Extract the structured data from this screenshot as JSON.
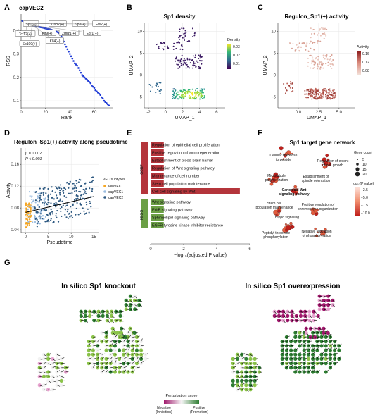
{
  "panels": {
    "a": {
      "letter": "A",
      "title": "capVEC2"
    },
    "b": {
      "letter": "B",
      "title": "Sp1 density"
    },
    "c": {
      "letter": "C",
      "title": "Regulon_Sp1(+) activity"
    },
    "d": {
      "letter": "D",
      "title": "Regulon_Sp1(+) activity along pseudotime"
    },
    "e": {
      "letter": "E"
    },
    "f": {
      "letter": "F",
      "title": "Sp1 target gene network"
    },
    "g": {
      "letter": "G",
      "title_left": "In silico Sp1 knockout",
      "title_right": "In silico Sp1 overexpression"
    }
  },
  "chart_data": [
    {
      "id": "A",
      "type": "scatter",
      "title": "capVEC2",
      "xlabel": "Rank",
      "ylabel": "RSS",
      "xlim": [
        0,
        75
      ],
      "ylim": [
        0.07,
        0.47
      ],
      "xticks": [
        0,
        20,
        40,
        60
      ],
      "yticks": [
        0.1,
        0.2,
        0.3,
        0.4
      ],
      "points": [
        [
          1,
          0.441
        ],
        [
          2,
          0.433
        ],
        [
          3,
          0.431
        ],
        [
          4,
          0.429
        ],
        [
          5,
          0.427
        ],
        [
          6,
          0.426
        ],
        [
          7,
          0.424
        ],
        [
          8,
          0.423
        ],
        [
          9,
          0.421
        ],
        [
          10,
          0.42
        ],
        [
          11,
          0.419
        ],
        [
          12,
          0.418
        ],
        [
          13,
          0.417
        ],
        [
          14,
          0.416
        ],
        [
          15,
          0.415
        ],
        [
          16,
          0.414
        ],
        [
          17,
          0.413
        ],
        [
          18,
          0.412
        ],
        [
          19,
          0.41
        ],
        [
          20,
          0.409
        ],
        [
          21,
          0.408
        ],
        [
          22,
          0.407
        ],
        [
          23,
          0.406
        ],
        [
          24,
          0.405
        ],
        [
          25,
          0.403
        ],
        [
          26,
          0.401
        ],
        [
          27,
          0.399
        ],
        [
          28,
          0.397
        ],
        [
          29,
          0.395
        ],
        [
          30,
          0.393
        ],
        [
          31,
          0.39
        ],
        [
          32,
          0.385
        ],
        [
          33,
          0.375
        ],
        [
          34,
          0.364
        ],
        [
          35,
          0.353
        ],
        [
          36,
          0.341
        ],
        [
          37,
          0.331
        ],
        [
          38,
          0.32
        ],
        [
          39,
          0.31
        ],
        [
          40,
          0.3
        ],
        [
          41,
          0.29
        ],
        [
          42,
          0.28
        ],
        [
          43,
          0.27
        ],
        [
          44,
          0.26
        ],
        [
          45,
          0.255
        ],
        [
          46,
          0.25
        ],
        [
          47,
          0.24
        ],
        [
          48,
          0.23
        ],
        [
          49,
          0.22
        ],
        [
          50,
          0.21
        ],
        [
          51,
          0.205
        ],
        [
          52,
          0.2
        ],
        [
          53,
          0.195
        ],
        [
          54,
          0.19
        ],
        [
          55,
          0.185
        ],
        [
          56,
          0.18
        ],
        [
          57,
          0.175
        ],
        [
          58,
          0.165
        ],
        [
          59,
          0.16
        ],
        [
          60,
          0.155
        ],
        [
          61,
          0.145
        ],
        [
          62,
          0.14
        ],
        [
          63,
          0.135
        ],
        [
          64,
          0.13
        ],
        [
          65,
          0.125
        ],
        [
          66,
          0.115
        ],
        [
          67,
          0.11
        ],
        [
          68,
          0.1
        ],
        [
          69,
          0.095
        ],
        [
          70,
          0.09
        ],
        [
          71,
          0.085
        ],
        [
          72,
          0.08
        ]
      ],
      "labels": [
        "Sp1(+)",
        "Chd2(+)",
        "Sp3(+)",
        "Ets2(+)",
        "Tcf12(+)",
        "Klf9(+)",
        "Zmiz1(+)",
        "Egr1(+)",
        "Sp100(+)",
        "Klf4(+)"
      ]
    },
    {
      "id": "B",
      "type": "scatter",
      "title": "Sp1 density",
      "xlabel": "UMAP_1",
      "ylabel": "UMAP_2",
      "xlim": [
        -2.5,
        7
      ],
      "ylim": [
        -7.5,
        12
      ],
      "xticks": [
        -2,
        0,
        2,
        4,
        6
      ],
      "yticks": [
        -5,
        0,
        5,
        10
      ],
      "legend": {
        "title": "Density",
        "ticks": [
          "0.03",
          "0.02",
          "0.01"
        ],
        "colors": [
          "#440154",
          "#31688e",
          "#35b779",
          "#fde725"
        ]
      }
    },
    {
      "id": "C",
      "type": "scatter",
      "title": "Regulon_Sp1(+) activity",
      "xlabel": "UMAP_1",
      "ylabel": "UMAP_2",
      "xlim": [
        -2.5,
        7
      ],
      "ylim": [
        -7.5,
        12
      ],
      "xticks": [
        0.0,
        2.5,
        5.0
      ],
      "xticklabels": [
        "0.0",
        "2.5",
        "5.0"
      ],
      "yticks": [
        -5,
        0,
        5,
        10
      ],
      "legend": {
        "title": "Activity",
        "ticks": [
          "0.16",
          "0.12",
          "0.08"
        ],
        "colors": [
          "#f3e0d8",
          "#d98a7c",
          "#8b1a1a"
        ]
      }
    },
    {
      "id": "D",
      "type": "scatter",
      "title": "Regulon_Sp1(+) activity along pseudotime",
      "xlabel": "Pseudotime",
      "ylabel": "Activity",
      "xlim": [
        -1,
        16
      ],
      "ylim": [
        0.035,
        0.19
      ],
      "xticks": [
        0,
        5,
        10,
        15
      ],
      "yticks": [
        0.04,
        0.08,
        0.12,
        0.16
      ],
      "annotation_beta": "β = 0.002",
      "annotation_p": "P < 0.001",
      "fit": {
        "x": [
          0,
          15
        ],
        "y": [
          0.072,
          0.101
        ]
      },
      "legend_title": "VEC subtypes",
      "series": [
        {
          "name": "venVEC",
          "color": "#f5a623"
        },
        {
          "name": "capVEC1",
          "color": "#9cbde0"
        },
        {
          "name": "capVEC2",
          "color": "#2f5a82"
        }
      ]
    },
    {
      "id": "E",
      "type": "bar",
      "xlabel": "−log₁₀(adjusted P value)",
      "xlim": [
        0,
        6
      ],
      "xticks": [
        0,
        2,
        4,
        6
      ],
      "groups": [
        {
          "name": "GOBP",
          "color": "#b4353b",
          "items": [
            {
              "label": "Regulation of epithelial cell proliferation",
              "value": 0.8
            },
            {
              "label": "Positive regulation of axon regeneration",
              "value": 0.8
            },
            {
              "label": "Establishment of blood-brain barrier",
              "value": 0.8
            },
            {
              "label": "Regulation of Wnt signaling pathway",
              "value": 0.8
            },
            {
              "label": "Maintenance of cell number",
              "value": 0.8
            },
            {
              "label": "Stem cell population maintenance",
              "value": 0.8
            },
            {
              "label": "Cell-cell signaling by Wnt",
              "value": 5.4
            }
          ]
        },
        {
          "name": "KEGG",
          "color": "#6b9f45",
          "items": [
            {
              "label": "Wnt signaling pathway",
              "value": 0.8
            },
            {
              "label": "ErbB signaling pathway",
              "value": 0.8
            },
            {
              "label": "Sphingolipid signaling pathway",
              "value": 0.8
            },
            {
              "label": "EGFR tyrosine kinase inhibitor resistance",
              "value": 0.8
            }
          ]
        }
      ]
    },
    {
      "id": "F",
      "type": "network",
      "title": "Sp1 target gene network",
      "nodes": [
        "Cellular response to peptide",
        "Regulation of extent of cell growth",
        "Microtubule polymerization",
        "Establishment of spindle orientation",
        "Canonical Wnt signaling pathway",
        "Stem cell population maintenance",
        "Positive regulation of chromosome organization",
        "Hippo signaling",
        "Peptidyl-threonine phosphorylation",
        "Negative regulation of phosphorylation"
      ],
      "size_legend": {
        "title": "Gene count",
        "values": [
          "5",
          "10",
          "15",
          "20"
        ]
      },
      "color_legend": {
        "title": "log₁₀(P value)",
        "ticks": [
          "−2.5",
          "−5.0",
          "−7.5",
          "−10.0"
        ],
        "colors": [
          "#fde0d8",
          "#f08c6c",
          "#c0201c"
        ]
      }
    },
    {
      "id": "G",
      "type": "vector-field",
      "titles": [
        "In silico Sp1 knockout",
        "In silico Sp1 overexpression"
      ],
      "legend": {
        "title": "Perturbation score",
        "low": "Negative",
        "low_sub": "(Inhibition)",
        "high": "Positive",
        "high_sub": "(Promotion)",
        "colors": [
          "#a0186c",
          "#f5f5f5",
          "#2e7d32"
        ]
      }
    }
  ]
}
